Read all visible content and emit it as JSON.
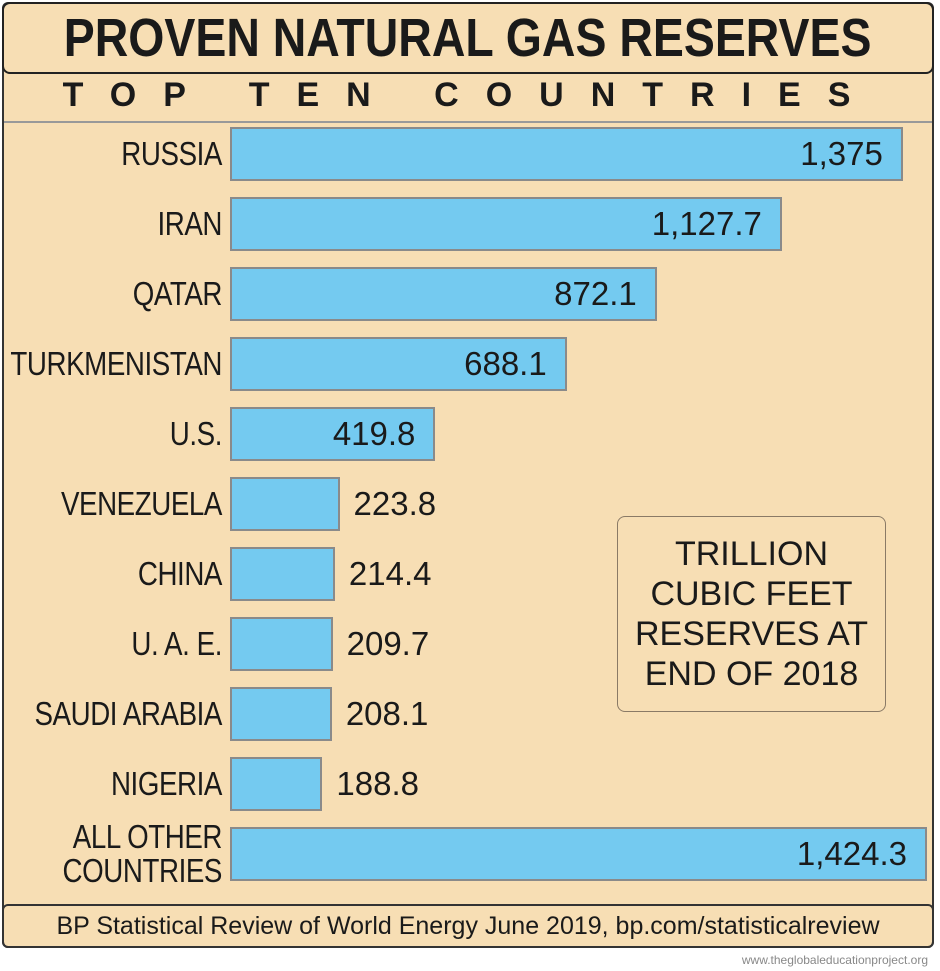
{
  "chart_data": {
    "type": "bar",
    "orientation": "horizontal",
    "title": "PROVEN NATURAL GAS RESERVES",
    "subtitle": "TOP TEN COUNTRIES",
    "categories": [
      "RUSSIA",
      "IRAN",
      "QATAR",
      "TURKMENISTAN",
      "U.S.",
      "VENEZUELA",
      "CHINA",
      "U. A. E.",
      "SAUDI ARABIA",
      "NIGERIA",
      "ALL OTHER COUNTRIES"
    ],
    "values": [
      1375,
      1127.7,
      872.1,
      688.1,
      419.8,
      223.8,
      214.4,
      209.7,
      208.1,
      188.8,
      1424.3
    ],
    "value_labels": [
      "1,375",
      "1,127.7",
      "872.1",
      "688.1",
      "419.8",
      "223.8",
      "214.4",
      "209.7",
      "208.1",
      "188.8",
      "1,424.3"
    ],
    "color": "#74caf0",
    "unit_note": "TRILLION CUBIC FEET RESERVES AT END OF 2018",
    "source": "BP Statistical Review of World Energy June 2019, bp.com/statisticalreview",
    "watermark": "www.theglobaleducationproject.org"
  }
}
